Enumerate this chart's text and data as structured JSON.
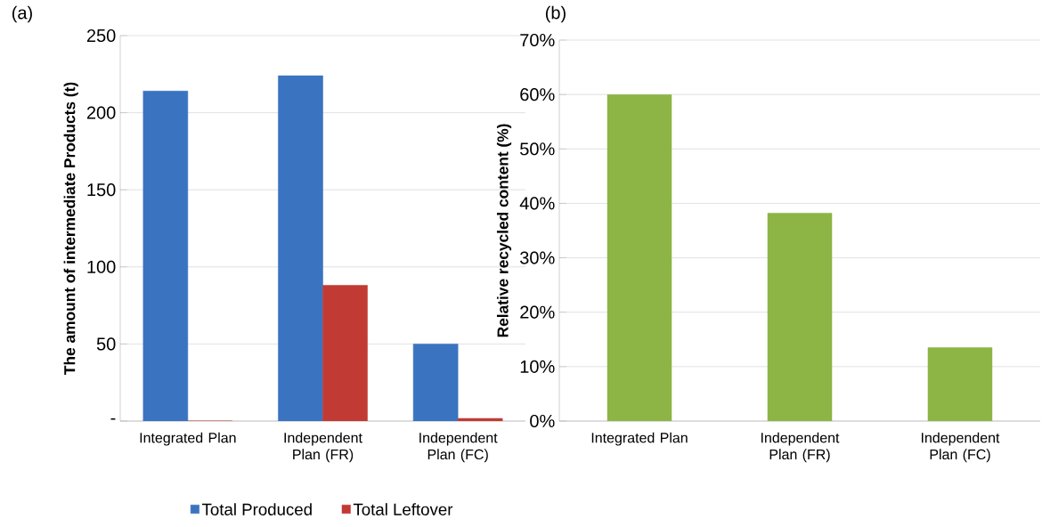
{
  "chart_data": [
    {
      "type": "bar",
      "title": "(a)",
      "ylabel": "The amount of intermediate Products (t)",
      "categories": [
        "Integrated Plan",
        "Independent Plan (FR)",
        "Independent Plan (FC)"
      ],
      "series": [
        {
          "name": "Total Produced",
          "color": "#3a74c0",
          "values": [
            214,
            224,
            50
          ]
        },
        {
          "name": "Total Leftover",
          "color": "#c23a34",
          "values": [
            0,
            88,
            1.7
          ]
        }
      ],
      "ylim": [
        0,
        250
      ],
      "yticks": [
        {
          "value": 0,
          "label": "-"
        },
        50,
        100,
        150,
        200,
        250
      ],
      "grid": "y",
      "legend": "bottom"
    },
    {
      "type": "bar",
      "title": "(b)",
      "ylabel": "Relative recycled content (%)",
      "categories": [
        "Integrated Plan",
        "Independent Plan (FR)",
        "Independent Plan (FC)"
      ],
      "series": [
        {
          "color": "#8cb545",
          "values": [
            60,
            38.2,
            13.5
          ]
        }
      ],
      "ylim": [
        0,
        70
      ],
      "yticks": [
        {
          "value": 0,
          "label": "0%"
        },
        {
          "value": 10,
          "label": "10%"
        },
        {
          "value": 20,
          "label": "20%"
        },
        {
          "value": 30,
          "label": "30%"
        },
        {
          "value": 40,
          "label": "40%"
        },
        {
          "value": 50,
          "label": "50%"
        },
        {
          "value": 60,
          "label": "60%"
        },
        {
          "value": 70,
          "label": "70%"
        }
      ],
      "grid": "y"
    }
  ]
}
